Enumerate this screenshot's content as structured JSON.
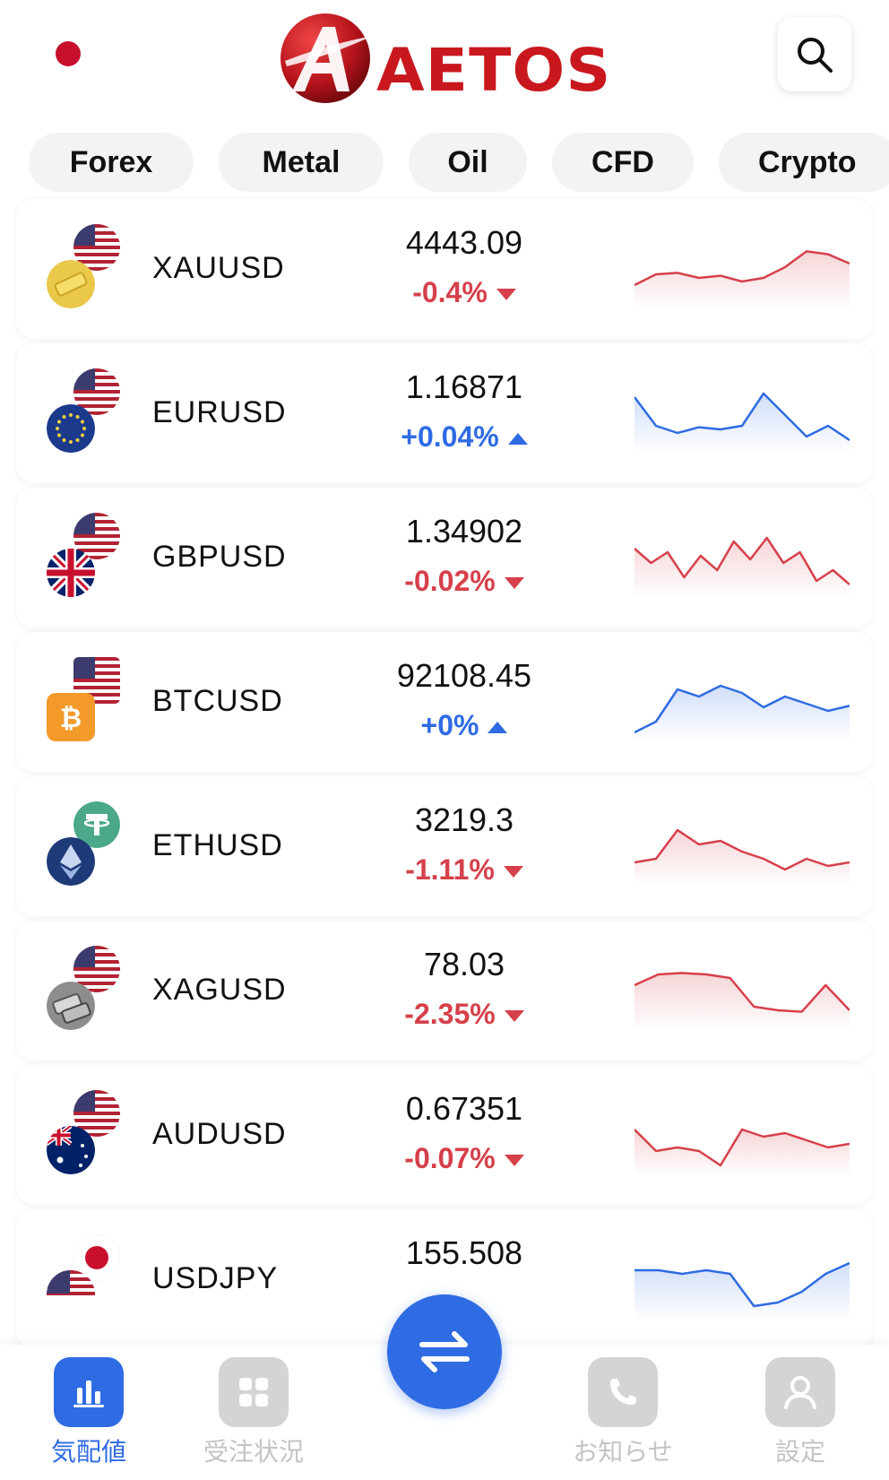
{
  "header": {
    "logo_text": "AETOS"
  },
  "tabs": [
    "Forex",
    "Metal",
    "Oil",
    "CFD",
    "Crypto"
  ],
  "instruments": [
    {
      "symbol": "XAUUSD",
      "price": "4443.09",
      "change": "-0.4%",
      "direction": "down",
      "spark": [
        0.25,
        0.4,
        0.42,
        0.35,
        0.38,
        0.3,
        0.35,
        0.5,
        0.72,
        0.68,
        0.55
      ]
    },
    {
      "symbol": "EURUSD",
      "price": "1.16871",
      "change": "+0.04%",
      "direction": "up",
      "spark": [
        0.7,
        0.3,
        0.2,
        0.28,
        0.25,
        0.3,
        0.75,
        0.45,
        0.15,
        0.3,
        0.1
      ]
    },
    {
      "symbol": "GBPUSD",
      "price": "1.34902",
      "change": "-0.02%",
      "direction": "down",
      "spark": [
        0.6,
        0.4,
        0.55,
        0.2,
        0.5,
        0.3,
        0.7,
        0.45,
        0.75,
        0.4,
        0.55,
        0.15,
        0.3,
        0.1
      ]
    },
    {
      "symbol": "BTCUSD",
      "price": "92108.45",
      "change": "+0%",
      "direction": "up",
      "spark": [
        0.05,
        0.2,
        0.65,
        0.55,
        0.7,
        0.6,
        0.4,
        0.55,
        0.45,
        0.35,
        0.42
      ]
    },
    {
      "symbol": "ETHUSD",
      "price": "3219.3",
      "change": "-1.11%",
      "direction": "down",
      "spark": [
        0.25,
        0.3,
        0.7,
        0.5,
        0.55,
        0.4,
        0.3,
        0.15,
        0.3,
        0.2,
        0.25
      ]
    },
    {
      "symbol": "XAGUSD",
      "price": "78.03",
      "change": "-2.35%",
      "direction": "down",
      "spark": [
        0.55,
        0.7,
        0.72,
        0.7,
        0.65,
        0.25,
        0.2,
        0.18,
        0.55,
        0.2
      ]
    },
    {
      "symbol": "AUDUSD",
      "price": "0.67351",
      "change": "-0.07%",
      "direction": "down",
      "spark": [
        0.55,
        0.25,
        0.3,
        0.25,
        0.05,
        0.55,
        0.45,
        0.5,
        0.4,
        0.3,
        0.35
      ]
    },
    {
      "symbol": "USDJPY",
      "price": "155.508",
      "change": "",
      "direction": "up",
      "spark": [
        0.6,
        0.6,
        0.55,
        0.6,
        0.55,
        0.1,
        0.15,
        0.3,
        0.55,
        0.7
      ]
    }
  ],
  "bottom_nav": [
    {
      "label": "気配値",
      "icon": "chart-icon",
      "active": true
    },
    {
      "label": "受注状況",
      "icon": "grid-icon",
      "active": false
    },
    {
      "label": "お知らせ",
      "icon": "phone-icon",
      "active": false
    },
    {
      "label": "設定",
      "icon": "user-icon",
      "active": false
    }
  ],
  "fab_icon": "swap-arrows-icon",
  "colors": {
    "accent": "#2f6be3",
    "down": "#d6404a",
    "up": "#2f6be3",
    "brand": "#c8181e"
  }
}
